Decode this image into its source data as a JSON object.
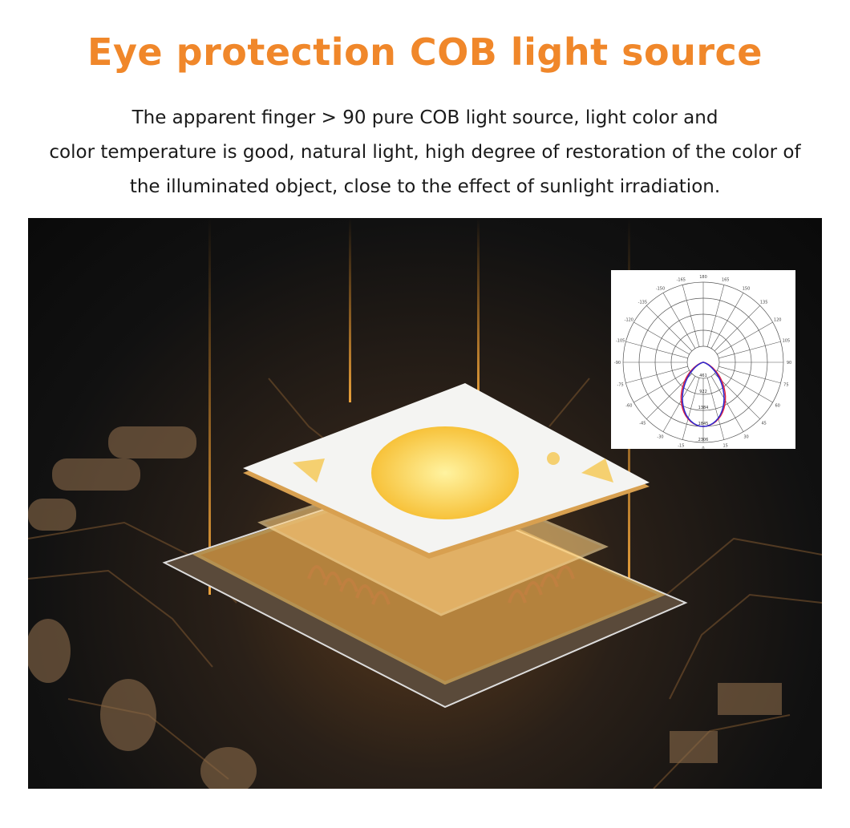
{
  "header": {
    "title": "Eye protection COB light source",
    "description_lines": [
      "The apparent finger > 90 pure COB light source, light color and",
      "color temperature is good, natural light, high degree of restoration of the color of",
      "the illuminated object, close to the effect of sunlight irradiation."
    ]
  },
  "colors": {
    "title": "#f0872a",
    "text": "#1a1a1a",
    "glow": "#ffb340",
    "curve_blue": "#2a2ad0",
    "curve_red": "#e02040"
  },
  "polar_chart": {
    "angle_labels": [
      "180",
      "165",
      "150",
      "135",
      "120",
      "105",
      "90",
      "75",
      "60",
      "45",
      "30",
      "15",
      "0",
      "-15",
      "-30",
      "-45",
      "-60",
      "-75",
      "-90",
      "-105",
      "-120",
      "-135",
      "-150",
      "-165"
    ],
    "radial_labels": [
      "461",
      "922",
      "1384",
      "1845",
      "2306"
    ]
  }
}
